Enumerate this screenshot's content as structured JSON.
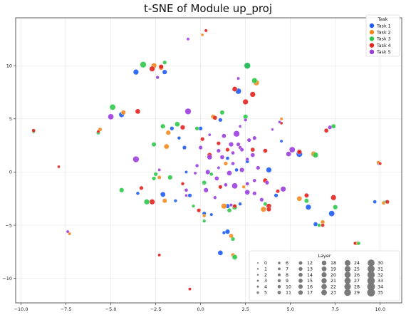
{
  "chart_data": {
    "type": "scatter",
    "title": "t-SNE of Module up_proj",
    "xlabel": "",
    "ylabel": "",
    "xlim": [
      -10.3,
      11.2
    ],
    "ylim": [
      -12.3,
      14.5
    ],
    "xticks": [
      -10.0,
      -7.5,
      -5.0,
      -2.5,
      0.0,
      2.5,
      5.0,
      7.5,
      10.0
    ],
    "xtick_labels": [
      "−10.0",
      "−7.5",
      "−5.0",
      "−2.5",
      "0.0",
      "2.5",
      "5.0",
      "7.5",
      "10.0"
    ],
    "yticks": [
      -10,
      -5,
      0,
      5,
      10
    ],
    "ytick_labels": [
      "−10",
      "−5",
      "0",
      "5",
      "10"
    ],
    "grid": true,
    "legend_task": {
      "title": "Task",
      "placement": "top-right",
      "entries": [
        "Task 1",
        "Task 2",
        "Task 3",
        "Task 4",
        "Task 5"
      ]
    },
    "legend_layer": {
      "title": "Layer",
      "placement": "bottom-right",
      "entries": [
        "0",
        "1",
        "2",
        "3",
        "4",
        "5",
        "6",
        "7",
        "8",
        "9",
        "10",
        "11",
        "12",
        "13",
        "14",
        "15",
        "16",
        "17",
        "18",
        "19",
        "20",
        "21",
        "22",
        "23",
        "24",
        "25",
        "26",
        "27",
        "28",
        "29",
        "30",
        "31",
        "32",
        "33",
        "34",
        "35"
      ]
    },
    "colors": {
      "Task 1": "#1f5cf5",
      "Task 2": "#f58a1f",
      "Task 3": "#2ec84b",
      "Task 4": "#e3241f",
      "Task 5": "#9b3fe0"
    },
    "series": [
      {
        "name": "Task 1",
        "points": [
          [
            -3.6,
            9.4,
            22
          ],
          [
            -4.4,
            5.4,
            22
          ],
          [
            -3.5,
            -2.0,
            11
          ],
          [
            -2.0,
            9.4,
            18
          ],
          [
            -1.6,
            4.1,
            14
          ],
          [
            -1.2,
            3.2,
            11
          ],
          [
            -0.9,
            2.3,
            14
          ],
          [
            -0.8,
            0.0,
            9
          ],
          [
            -2.1,
            -2.1,
            20
          ],
          [
            -0.6,
            -2.2,
            14
          ],
          [
            0.0,
            4.1,
            14
          ],
          [
            1.1,
            4.9,
            14
          ],
          [
            1.5,
            1.3,
            12
          ],
          [
            2.0,
            0.2,
            12
          ],
          [
            2.6,
            1.0,
            13
          ],
          [
            2.2,
            -3.0,
            11
          ],
          [
            1.5,
            -3.2,
            17
          ],
          [
            0.6,
            -4.0,
            10
          ],
          [
            1.5,
            -5.6,
            18
          ],
          [
            1.1,
            -7.6,
            20
          ],
          [
            1.3,
            -5.7,
            11
          ],
          [
            2.1,
            7.6,
            24
          ],
          [
            2.6,
            10.0,
            28
          ],
          [
            3.8,
            0.2,
            22
          ],
          [
            4.2,
            -2.2,
            14
          ],
          [
            5.5,
            1.7,
            26
          ],
          [
            6.0,
            -3.3,
            22
          ],
          [
            6.4,
            -4.9,
            16
          ],
          [
            7.3,
            -3.9,
            24
          ],
          [
            9.7,
            -2.8,
            12
          ],
          [
            9.9,
            0.8,
            9
          ],
          [
            0.2,
            -3.9,
            14
          ],
          [
            -1.4,
            -2.7,
            10
          ],
          [
            4.5,
            2.9,
            9
          ]
        ]
      },
      {
        "name": "Task 2",
        "points": [
          [
            -2.6,
            10.0,
            22
          ],
          [
            -2.2,
            9.8,
            18
          ],
          [
            -4.3,
            5.6,
            18
          ],
          [
            -1.8,
            3.7,
            18
          ],
          [
            -1.9,
            2.4,
            20
          ],
          [
            -2.3,
            -0.5,
            13
          ],
          [
            -2.0,
            -2.7,
            17
          ],
          [
            0.7,
            5.2,
            17
          ],
          [
            1.4,
            0.8,
            14
          ],
          [
            1.3,
            -3.2,
            22
          ],
          [
            1.7,
            -6.0,
            16
          ],
          [
            1.8,
            -7.8,
            14
          ],
          [
            3.1,
            8.4,
            24
          ],
          [
            3.5,
            -3.5,
            22
          ],
          [
            6.3,
            1.7,
            22
          ],
          [
            5.5,
            -2.5,
            20
          ],
          [
            6.8,
            -4.7,
            15
          ],
          [
            8.7,
            -6.7,
            14
          ],
          [
            9.9,
            0.9,
            12
          ],
          [
            10.2,
            -2.9,
            14
          ],
          [
            -5.6,
            4.0,
            14
          ],
          [
            -7.3,
            -5.8,
            10
          ],
          [
            0.1,
            12.9,
            8
          ],
          [
            4.5,
            5.0,
            9
          ],
          [
            0.2,
            -4.1,
            11
          ],
          [
            2.4,
            -1.4,
            11
          ],
          [
            -2.3,
            -7.8,
            7
          ]
        ]
      },
      {
        "name": "Task 3",
        "points": [
          [
            -4.9,
            6.1,
            24
          ],
          [
            -3.2,
            10.1,
            26
          ],
          [
            -2.0,
            10.3,
            14
          ],
          [
            -1.3,
            4.5,
            20
          ],
          [
            -2.1,
            4.3,
            18
          ],
          [
            -2.6,
            2.6,
            17
          ],
          [
            -4.4,
            -1.7,
            18
          ],
          [
            -3.0,
            -2.8,
            22
          ],
          [
            -2.6,
            -0.6,
            14
          ],
          [
            -1.7,
            -0.5,
            18
          ],
          [
            -0.2,
            4.1,
            14
          ],
          [
            0.2,
            -1.0,
            16
          ],
          [
            0.2,
            -4.6,
            11
          ],
          [
            1.2,
            5.6,
            17
          ],
          [
            1.9,
            -3.3,
            20
          ],
          [
            1.6,
            -3.6,
            16
          ],
          [
            1.9,
            -8.0,
            20
          ],
          [
            1.8,
            -6.3,
            14
          ],
          [
            2.6,
            10.0,
            26
          ],
          [
            3.0,
            8.6,
            22
          ],
          [
            2.5,
            5.2,
            18
          ],
          [
            3.6,
            -3.0,
            13
          ],
          [
            5.9,
            -2.7,
            17
          ],
          [
            6.4,
            1.6,
            22
          ],
          [
            6.6,
            -5.0,
            12
          ],
          [
            7.4,
            4.3,
            17
          ],
          [
            7.5,
            -3.3,
            18
          ],
          [
            8.8,
            -6.7,
            12
          ],
          [
            10.3,
            -2.8,
            9
          ],
          [
            -5.7,
            3.7,
            14
          ],
          [
            -9.3,
            3.8,
            11
          ],
          [
            -2.5,
            -0.2,
            14
          ],
          [
            0.6,
            -0.2,
            12
          ],
          [
            -0.4,
            -3.2,
            10
          ]
        ]
      },
      {
        "name": "Task 4",
        "points": [
          [
            -2.7,
            9.7,
            22
          ],
          [
            -2.2,
            9.9,
            18
          ],
          [
            -3.5,
            5.7,
            20
          ],
          [
            -1.0,
            4.2,
            18
          ],
          [
            0.8,
            5.1,
            16
          ],
          [
            1.0,
            2.7,
            14
          ],
          [
            0.1,
            3.1,
            14
          ],
          [
            0.5,
            1.6,
            18
          ],
          [
            1.5,
            2.1,
            14
          ],
          [
            2.5,
            6.6,
            22
          ],
          [
            2.9,
            7.3,
            22
          ],
          [
            2.9,
            2.1,
            16
          ],
          [
            1.9,
            7.8,
            20
          ],
          [
            3.6,
            2.0,
            16
          ],
          [
            3.6,
            -0.8,
            18
          ],
          [
            3.8,
            -3.2,
            20
          ],
          [
            3.8,
            -3.5,
            17
          ],
          [
            4.3,
            -1.8,
            13
          ],
          [
            5.5,
            1.9,
            18
          ],
          [
            5.9,
            -2.2,
            17
          ],
          [
            7.4,
            -2.4,
            22
          ],
          [
            7.0,
            3.9,
            16
          ],
          [
            8.6,
            -6.7,
            10
          ],
          [
            10.0,
            0.8,
            9
          ],
          [
            10.4,
            -2.8,
            14
          ],
          [
            0.3,
            13.3,
            10
          ],
          [
            -9.3,
            3.9,
            12
          ],
          [
            -7.9,
            0.5,
            8
          ],
          [
            -3.3,
            -1.5,
            14
          ],
          [
            -1.0,
            -1.1,
            11
          ],
          [
            -0.1,
            -3.6,
            14
          ],
          [
            1.9,
            -3.2,
            14
          ],
          [
            -2.7,
            -2.8,
            22
          ],
          [
            1.1,
            -1.4,
            14
          ],
          [
            -2.3,
            -7.8,
            9
          ],
          [
            -0.6,
            -11.0,
            9
          ],
          [
            4.5,
            4.6,
            9
          ],
          [
            -5.7,
            3.8,
            9
          ],
          [
            6.8,
            -5.0,
            12
          ]
        ]
      },
      {
        "name": "Task 5",
        "points": [
          [
            -5.0,
            5.2,
            24
          ],
          [
            -2.4,
            8.9,
            11
          ],
          [
            -0.7,
            5.7,
            26
          ],
          [
            -3.6,
            1.2,
            26
          ],
          [
            0.0,
            2.3,
            14
          ],
          [
            0.5,
            1.4,
            20
          ],
          [
            0.4,
            0.0,
            18
          ],
          [
            0.9,
            -0.6,
            16
          ],
          [
            1.0,
            2.0,
            14
          ],
          [
            1.3,
            3.4,
            16
          ],
          [
            1.7,
            2.6,
            18
          ],
          [
            1.2,
            1.4,
            16
          ],
          [
            1.8,
            1.8,
            12
          ],
          [
            2.0,
            3.6,
            26
          ],
          [
            2.1,
            2.6,
            14
          ],
          [
            1.8,
            0.8,
            12
          ],
          [
            1.6,
            -0.1,
            20
          ],
          [
            1.9,
            -1.3,
            24
          ],
          [
            2.6,
            -1.9,
            20
          ],
          [
            2.6,
            -1.1,
            12
          ],
          [
            2.3,
            0.2,
            18
          ],
          [
            2.9,
            1.6,
            16
          ],
          [
            3.2,
            0.4,
            14
          ],
          [
            3.0,
            -0.8,
            12
          ],
          [
            2.7,
            3.0,
            14
          ],
          [
            2.2,
            2.3,
            12
          ],
          [
            0.3,
            -1.7,
            18
          ],
          [
            -0.8,
            -1.7,
            12
          ],
          [
            5.1,
            2.1,
            24
          ],
          [
            4.6,
            -1.6,
            22
          ],
          [
            4.9,
            1.7,
            20
          ],
          [
            3.7,
            -1.0,
            14
          ],
          [
            3.4,
            -2.6,
            14
          ],
          [
            1.7,
            -3.1,
            10
          ],
          [
            2.3,
            2.1,
            13
          ],
          [
            1.4,
            -1.2,
            12
          ],
          [
            -0.7,
            12.5,
            9
          ],
          [
            2.1,
            8.8,
            9
          ],
          [
            2.6,
            1.2,
            11
          ],
          [
            -0.2,
            0.6,
            11
          ],
          [
            1.0,
            0.4,
            9
          ],
          [
            0.8,
            -2.4,
            11
          ],
          [
            3.0,
            -2.0,
            14
          ],
          [
            -0.3,
            -0.1,
            9
          ],
          [
            -0.8,
            -2.2,
            8
          ],
          [
            -2.3,
            0.2,
            9
          ],
          [
            -7.4,
            -5.6,
            9
          ],
          [
            4.0,
            4.0,
            7
          ],
          [
            4.4,
            4.7,
            8
          ],
          [
            7.2,
            4.2,
            14
          ],
          [
            2.2,
            4.3,
            8
          ],
          [
            0.5,
            3.5,
            8
          ],
          [
            3.0,
            3.2,
            14
          ],
          [
            2.5,
            4.9,
            10
          ]
        ]
      }
    ]
  }
}
